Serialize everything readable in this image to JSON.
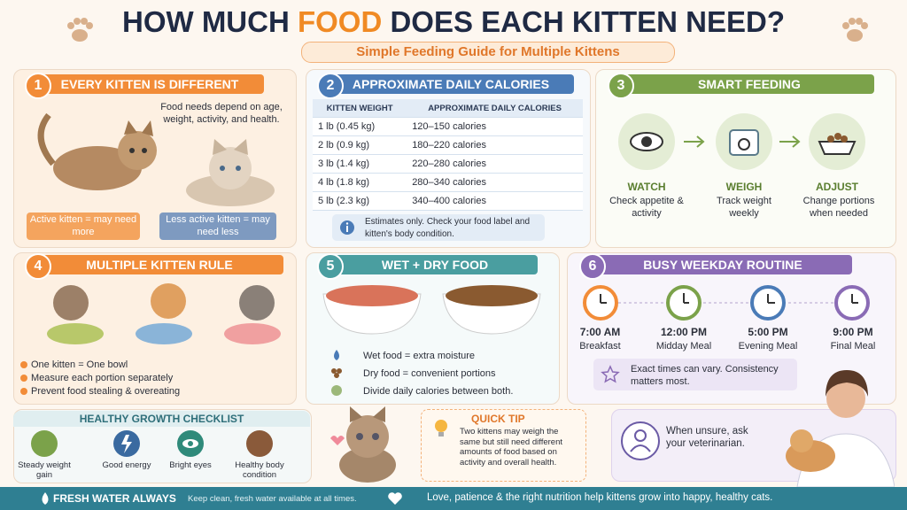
{
  "header": {
    "title_parts": [
      "HOW MUCH ",
      "FOOD",
      " DOES EACH KITTEN NEED?"
    ],
    "subtitle": "Simple Feeding Guide for Multiple Kittens"
  },
  "section1": {
    "number": "1",
    "title": "EVERY KITTEN IS DIFFERENT",
    "body": "Food needs depend on age, weight, activity, and health.",
    "active": "Active kitten = may need more",
    "less_active": "Less active kitten = may need less"
  },
  "section2": {
    "number": "2",
    "title": "APPROXIMATE DAILY CALORIES",
    "table": {
      "header": [
        "KITTEN WEIGHT",
        "APPROXIMATE DAILY CALORIES"
      ],
      "rows": [
        [
          "1 lb  (0.45 kg)",
          "120–150 calories"
        ],
        [
          "2 lb  (0.9 kg)",
          "180–220 calories"
        ],
        [
          "3 lb  (1.4 kg)",
          "220–280 calories"
        ],
        [
          "4 lb  (1.8 kg)",
          "280–340 calories"
        ],
        [
          "5 lb  (2.3 kg)",
          "340–400 calories"
        ]
      ]
    },
    "note": "Estimates only. Check your food label and kitten's body condition."
  },
  "section3": {
    "number": "3",
    "title": "SMART FEEDING",
    "steps": [
      {
        "title": "WATCH",
        "text": "Check appetite & activity"
      },
      {
        "title": "WEIGH",
        "text": "Track weight weekly"
      },
      {
        "title": "ADJUST",
        "text": "Change portions when needed"
      }
    ]
  },
  "section4": {
    "number": "4",
    "title": "MULTIPLE KITTEN RULE",
    "bullets": [
      "One kitten = One bowl",
      "Measure each portion separately",
      "Prevent food stealing & overeating"
    ]
  },
  "section5": {
    "number": "5",
    "title": "WET + DRY FOOD",
    "items": [
      "Wet food = extra moisture",
      "Dry food = convenient portions",
      "Divide daily calories between both."
    ]
  },
  "section6": {
    "number": "6",
    "title": "BUSY WEEKDAY ROUTINE",
    "times": [
      {
        "time": "7:00 AM",
        "label": "Breakfast"
      },
      {
        "time": "12:00 PM",
        "label": "Midday Meal"
      },
      {
        "time": "5:00 PM",
        "label": "Evening Meal"
      },
      {
        "time": "9:00 PM",
        "label": "Final Meal"
      }
    ],
    "note": "Exact times can vary. Consistency matters most."
  },
  "checklist": {
    "title": "HEALTHY GROWTH CHECKLIST",
    "items": [
      "Steady weight gain",
      "Good energy",
      "Bright eyes",
      "Healthy body condition"
    ]
  },
  "quick_tip": {
    "title": "QUICK TIP",
    "text": "Two kittens may weigh the same but still need different amounts of food based on activity and overall health."
  },
  "vet": {
    "text": "When unsure, ask your veterinarian."
  },
  "footer": {
    "water_title": "FRESH WATER ALWAYS",
    "water_text": "Keep clean, fresh water available at all times.",
    "message": "Love, patience & the right nutrition help kittens grow into happy, healthy cats."
  }
}
